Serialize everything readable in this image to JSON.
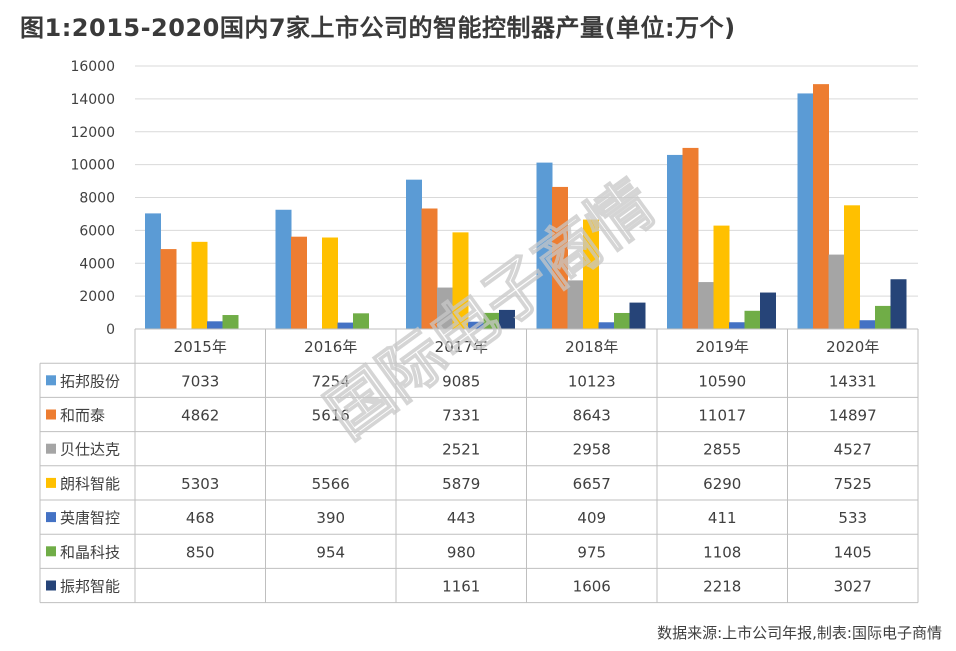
{
  "chart_data": {
    "type": "bar",
    "title": "图1:2015-2020国内7家上市公司的智能控制器产量(单位:万个)",
    "source": "数据来源:上市公司年报,制表:国际电子商情",
    "watermark": "国际电子商情",
    "categories": [
      "2015年",
      "2016年",
      "2017年",
      "2018年",
      "2019年",
      "2020年"
    ],
    "ylim": [
      0,
      16000
    ],
    "yticks": [
      0,
      2000,
      4000,
      6000,
      8000,
      10000,
      12000,
      14000,
      16000
    ],
    "grid": true,
    "legend": "table",
    "series": [
      {
        "name": "拓邦股份",
        "color": "#5b9bd5",
        "values": [
          7033,
          7254,
          9085,
          10123,
          10590,
          14331
        ],
        "labels": [
          "7033",
          "7254",
          "9085",
          "10123",
          "10590",
          "14331"
        ]
      },
      {
        "name": "和而泰",
        "color": "#ed7d31",
        "values": [
          4862,
          5616,
          7331,
          8643,
          11017,
          14897
        ],
        "labels": [
          "4862",
          "5616",
          "7331",
          "8643",
          "11017",
          "14897"
        ]
      },
      {
        "name": "贝仕达克",
        "color": "#a5a5a5",
        "values": [
          null,
          null,
          2521,
          2958,
          2855,
          4527
        ],
        "labels": [
          "",
          "",
          "2521",
          "2958",
          "2855",
          "4527"
        ]
      },
      {
        "name": "朗科智能",
        "color": "#ffc000",
        "values": [
          5303,
          5566,
          5879,
          6657,
          6290,
          7525
        ],
        "labels": [
          "5303",
          "5566",
          "5879",
          "6657",
          "6290",
          "7525"
        ]
      },
      {
        "name": "英唐智控",
        "color": "#4472c4",
        "values": [
          468,
          390,
          443,
          409,
          411,
          533
        ],
        "labels": [
          "468",
          "390",
          "443",
          "409",
          "411",
          "533"
        ]
      },
      {
        "name": "和晶科技",
        "color": "#70ad47",
        "values": [
          850,
          954,
          980,
          975,
          1108,
          1405
        ],
        "labels": [
          "850",
          "954",
          "980",
          "975",
          "1108",
          "1405"
        ]
      },
      {
        "name": "振邦智能",
        "color": "#264478",
        "values": [
          null,
          null,
          1161,
          1606,
          2218,
          3027
        ],
        "labels": [
          "",
          "",
          "1161",
          "1606",
          "2218",
          "3027"
        ]
      }
    ]
  }
}
